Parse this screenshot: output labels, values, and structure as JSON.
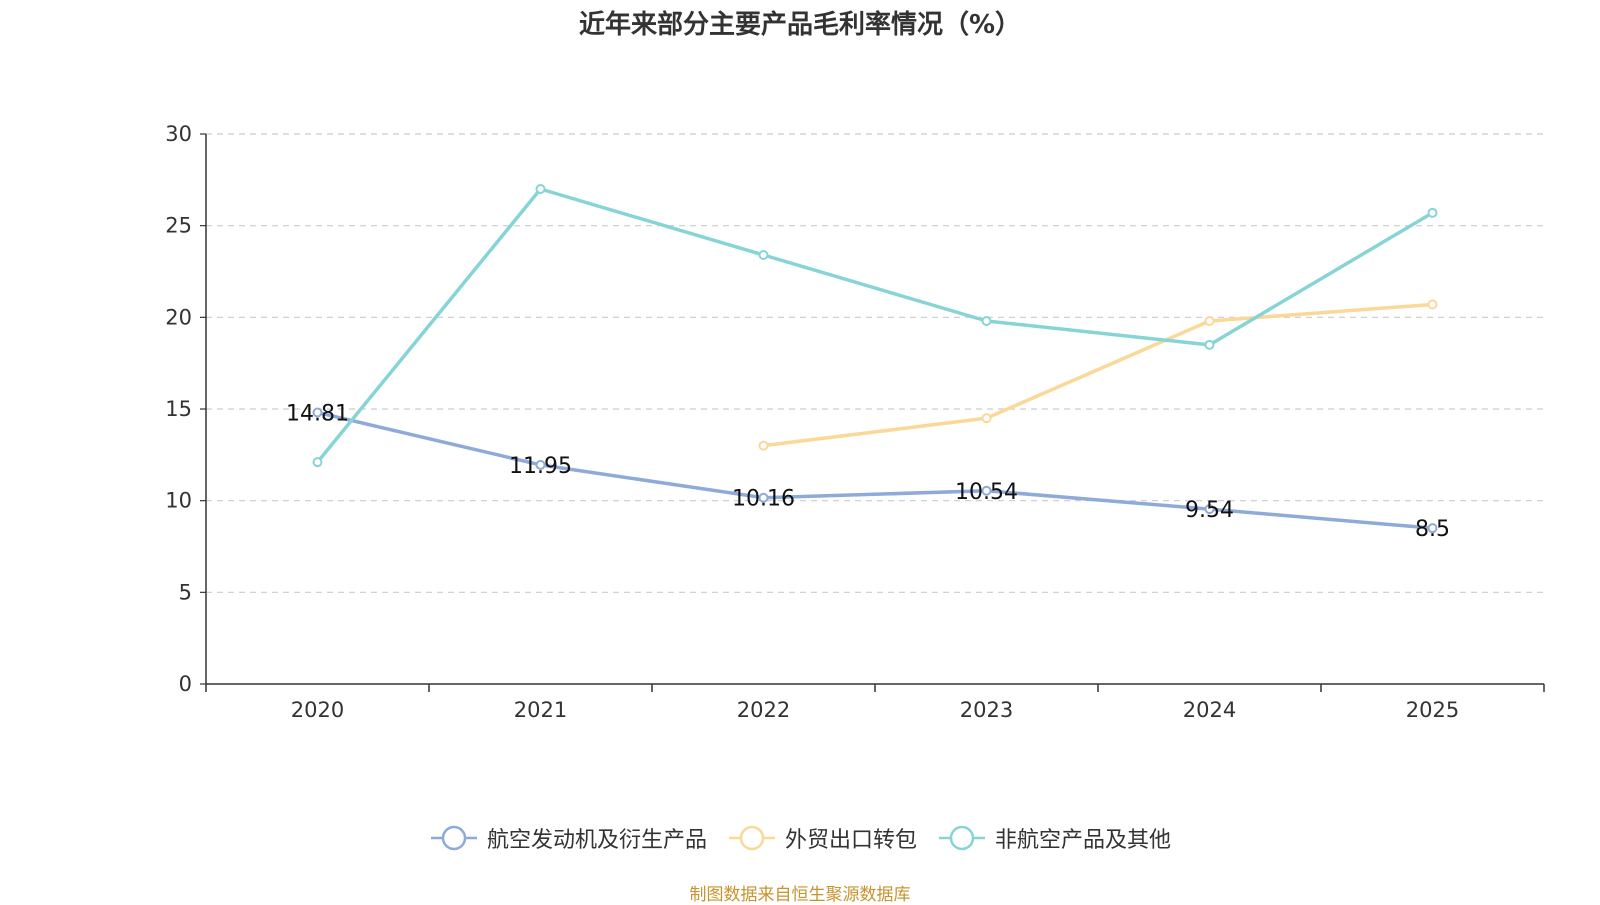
{
  "chart_data": {
    "type": "line",
    "title": "近年来部分主要产品毛利率情况（%）",
    "xlabel": "",
    "ylabel": "",
    "categories": [
      "2020",
      "2021",
      "2022",
      "2023",
      "2024",
      "2025"
    ],
    "ylim": [
      0,
      30
    ],
    "yticks": [
      0,
      5,
      10,
      15,
      20,
      25,
      30
    ],
    "grid": true,
    "legend_position": "bottom",
    "series": [
      {
        "name": "航空发动机及衍生产品",
        "color": "#8eaad8",
        "values": [
          14.81,
          11.95,
          10.16,
          10.54,
          9.54,
          8.5
        ],
        "labels": [
          "14.81",
          "11.95",
          "10.16",
          "10.54",
          "9.54",
          "8.5"
        ],
        "show_labels": true
      },
      {
        "name": "外贸出口转包",
        "color": "#fbd898",
        "values": [
          null,
          null,
          13.0,
          14.5,
          19.8,
          20.7
        ],
        "show_labels": false
      },
      {
        "name": "非航空产品及其他",
        "color": "#87d4d6",
        "values": [
          12.1,
          27.0,
          23.4,
          19.8,
          18.5,
          25.7
        ],
        "show_labels": false
      }
    ]
  },
  "source_note": "制图数据来自恒生聚源数据库",
  "source_note_color": "#c9932e"
}
